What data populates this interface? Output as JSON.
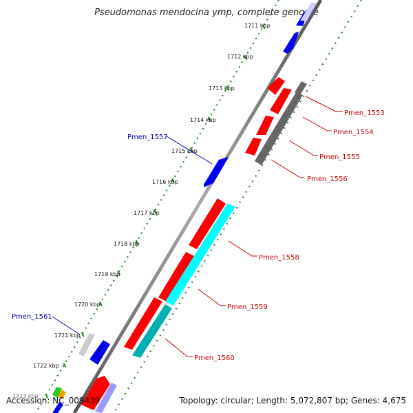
{
  "title": "Pseudomonas mendocina ymp, complete genome",
  "footer": {
    "accession": "Accession: NC_009439",
    "summary": "Topology: circular; Length: 5,072,807 bp; Genes: 4,675"
  },
  "ruler_ticks": [
    "1711 kbp",
    "1712 kbp",
    "1713 kbp",
    "1714 kbp",
    "1715 kbp",
    "1716 kbp",
    "1717 kbp",
    "1718 kbp",
    "1719 kbp",
    "1720 kbp",
    "1721 kbp",
    "1722 kbp",
    "1723 kbp"
  ],
  "gene_labels": [
    {
      "name": "Pmen_1553",
      "color": "#cc0000"
    },
    {
      "name": "Pmen_1554",
      "color": "#cc0000"
    },
    {
      "name": "Pmen_1555",
      "color": "#cc0000"
    },
    {
      "name": "Pmen_1556",
      "color": "#cc0000"
    },
    {
      "name": "Pmen_1557",
      "color": "#0000aa"
    },
    {
      "name": "Pmen_1558",
      "color": "#cc0000"
    },
    {
      "name": "Pmen_1559",
      "color": "#cc0000"
    },
    {
      "name": "Pmen_1560",
      "color": "#cc0000"
    },
    {
      "name": "Pmen_1561",
      "color": "#0000aa"
    }
  ],
  "colors": {
    "cds_red": "#ff0000",
    "cds_blue": "#0000ee",
    "cds_cyan": "#00ffff",
    "cds_dark_cyan": "#00b0b0",
    "grey_dark": "#666666",
    "grey_light": "#cccccc",
    "ruler_green": "#1e8c1e",
    "backbone": "#888888"
  }
}
